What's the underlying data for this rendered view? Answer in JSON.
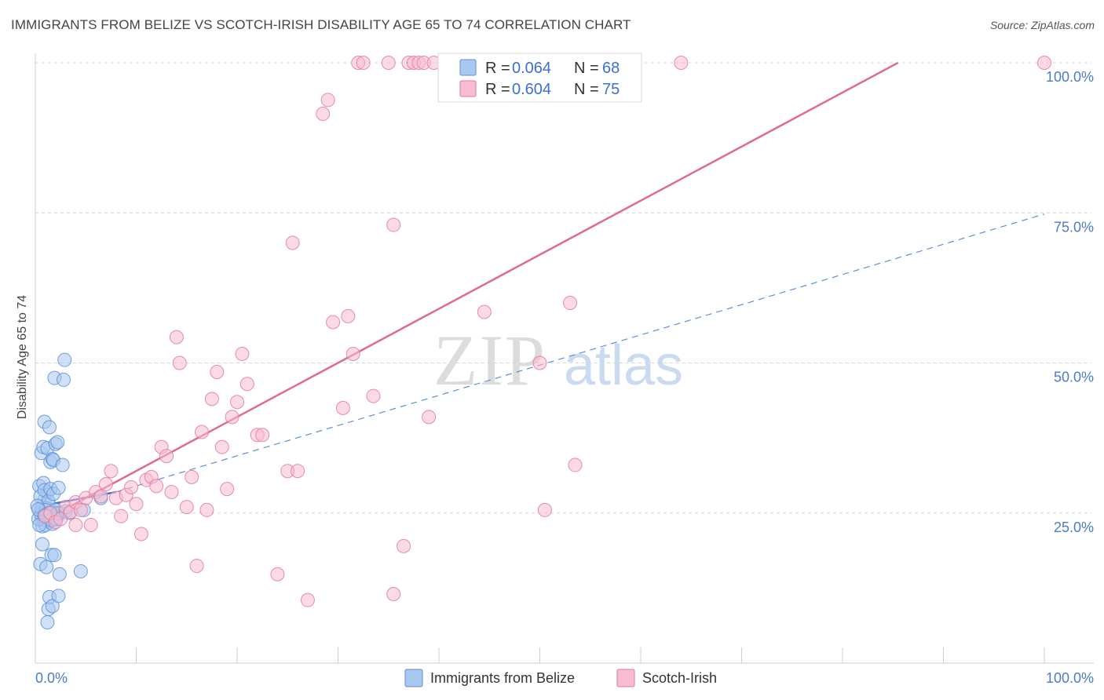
{
  "title": "IMMIGRANTS FROM BELIZE VS SCOTCH-IRISH DISABILITY AGE 65 TO 74 CORRELATION CHART",
  "source": "Source: ZipAtlas.com",
  "watermark": {
    "part1": "ZIP",
    "part2": "atlas"
  },
  "legend_top": {
    "r_label": "R = ",
    "n_label": "N = ",
    "rows": [
      {
        "r": "0.064",
        "n": "68",
        "color": "#a9c8f0",
        "stroke": "#5b8fd6"
      },
      {
        "r": "0.604",
        "n": "75",
        "color": "#f7bcd0",
        "stroke": "#e27a9e"
      }
    ]
  },
  "chart_data": {
    "type": "scatter",
    "xlabel": "",
    "ylabel": "Disability Age 65 to 74",
    "xlim": [
      0,
      100
    ],
    "ylim": [
      0,
      100
    ],
    "x_tick_labels": [
      "0.0%",
      "100.0%"
    ],
    "y_ticks": [
      25,
      50,
      75,
      100
    ],
    "y_tick_labels": [
      "25.0%",
      "50.0%",
      "75.0%",
      "100.0%"
    ],
    "grid": true,
    "legend_placement": "bottom",
    "series": [
      {
        "name": "Immigrants from Belize",
        "color": "#a9c8f0",
        "stroke": "#5b8fd6",
        "trend": {
          "x0": 0,
          "y0": 26.0,
          "x1": 8,
          "y1": 28.5,
          "solid_until": 8,
          "dashed_to": 100,
          "y_end": 74.8
        },
        "points": [
          [
            0.5,
            25.2
          ],
          [
            0.6,
            24.5
          ],
          [
            0.7,
            26.0
          ],
          [
            0.8,
            23.8
          ],
          [
            0.9,
            27.2
          ],
          [
            1.0,
            25.0
          ],
          [
            1.1,
            24.0
          ],
          [
            1.2,
            28.5
          ],
          [
            1.3,
            26.5
          ],
          [
            1.4,
            23.5
          ],
          [
            0.4,
            29.5
          ],
          [
            0.5,
            27.8
          ],
          [
            0.6,
            24.8
          ],
          [
            0.7,
            22.8
          ],
          [
            0.8,
            30.0
          ],
          [
            0.9,
            28.8
          ],
          [
            1.0,
            23.0
          ],
          [
            1.1,
            25.8
          ],
          [
            1.2,
            24.2
          ],
          [
            1.3,
            27.0
          ],
          [
            1.5,
            29.0
          ],
          [
            1.6,
            24.5
          ],
          [
            1.7,
            23.2
          ],
          [
            1.8,
            28.2
          ],
          [
            2.0,
            25.5
          ],
          [
            2.1,
            24.0
          ],
          [
            2.3,
            29.2
          ],
          [
            2.5,
            25.0
          ],
          [
            0.6,
            35.0
          ],
          [
            0.8,
            36.0
          ],
          [
            0.9,
            40.2
          ],
          [
            1.2,
            35.8
          ],
          [
            1.4,
            39.3
          ],
          [
            1.5,
            33.5
          ],
          [
            1.7,
            34.0
          ],
          [
            1.8,
            33.8
          ],
          [
            1.9,
            47.5
          ],
          [
            2.0,
            36.5
          ],
          [
            2.2,
            36.8
          ],
          [
            2.7,
            33.0
          ],
          [
            2.8,
            47.2
          ],
          [
            2.9,
            50.5
          ],
          [
            0.5,
            16.5
          ],
          [
            0.7,
            19.8
          ],
          [
            1.1,
            16.0
          ],
          [
            1.6,
            18.0
          ],
          [
            1.9,
            18.0
          ],
          [
            2.4,
            14.8
          ],
          [
            1.2,
            6.8
          ],
          [
            1.3,
            9.0
          ],
          [
            1.4,
            11.0
          ],
          [
            1.7,
            9.5
          ],
          [
            2.3,
            11.2
          ],
          [
            4.5,
            15.3
          ],
          [
            0.3,
            24.0
          ],
          [
            0.4,
            23.0
          ],
          [
            1.0,
            25.5
          ],
          [
            1.4,
            25.0
          ],
          [
            1.6,
            23.8
          ],
          [
            2.0,
            24.0
          ],
          [
            2.2,
            25.0
          ],
          [
            3.0,
            25.3
          ],
          [
            3.4,
            25.0
          ],
          [
            4.8,
            25.5
          ],
          [
            6.5,
            27.5
          ],
          [
            0.2,
            26.2
          ],
          [
            0.3,
            25.6
          ],
          [
            0.9,
            24.6
          ]
        ]
      },
      {
        "name": "Scotch-Irish",
        "color": "#f7bcd0",
        "stroke": "#e27a9e",
        "trend": {
          "x0": 0,
          "y0": 23.0,
          "x1": 85.5,
          "y1": 100
        },
        "points": [
          [
            1.0,
            24.5
          ],
          [
            1.5,
            25.0
          ],
          [
            2.0,
            23.5
          ],
          [
            2.5,
            24.0
          ],
          [
            3.0,
            26.0
          ],
          [
            3.5,
            25.2
          ],
          [
            4.0,
            26.8
          ],
          [
            4.5,
            25.5
          ],
          [
            5.0,
            27.5
          ],
          [
            5.5,
            23.0
          ],
          [
            6.0,
            28.5
          ],
          [
            6.5,
            27.8
          ],
          [
            7.0,
            29.8
          ],
          [
            7.5,
            32.0
          ],
          [
            8.0,
            27.5
          ],
          [
            8.5,
            24.5
          ],
          [
            9.0,
            28.0
          ],
          [
            9.5,
            29.3
          ],
          [
            10.0,
            26.5
          ],
          [
            10.5,
            21.5
          ],
          [
            11.0,
            30.5
          ],
          [
            11.5,
            31.0
          ],
          [
            12.0,
            29.5
          ],
          [
            12.5,
            36.0
          ],
          [
            13.0,
            34.5
          ],
          [
            13.5,
            28.5
          ],
          [
            14.0,
            54.3
          ],
          [
            14.3,
            50.0
          ],
          [
            15.0,
            26.0
          ],
          [
            15.5,
            31.0
          ],
          [
            16.0,
            16.2
          ],
          [
            16.5,
            38.5
          ],
          [
            17.0,
            25.5
          ],
          [
            17.5,
            44.0
          ],
          [
            18.0,
            48.5
          ],
          [
            18.5,
            36.0
          ],
          [
            19.0,
            29.0
          ],
          [
            19.5,
            41.0
          ],
          [
            20.0,
            43.5
          ],
          [
            20.5,
            51.5
          ],
          [
            21.0,
            46.5
          ],
          [
            22.0,
            38.0
          ],
          [
            22.5,
            38.0
          ],
          [
            24.0,
            14.8
          ],
          [
            25.0,
            32.0
          ],
          [
            25.5,
            70.0
          ],
          [
            26.0,
            32.0
          ],
          [
            27.0,
            10.5
          ],
          [
            28.5,
            91.5
          ],
          [
            29.0,
            93.8
          ],
          [
            29.5,
            56.8
          ],
          [
            30.5,
            42.5
          ],
          [
            31.0,
            57.8
          ],
          [
            31.5,
            51.5
          ],
          [
            32.0,
            100
          ],
          [
            32.5,
            100
          ],
          [
            33.5,
            44.5
          ],
          [
            35.0,
            100
          ],
          [
            35.5,
            73.0
          ],
          [
            37.0,
            100
          ],
          [
            37.5,
            100
          ],
          [
            38.0,
            100
          ],
          [
            38.5,
            100
          ],
          [
            39.0,
            41.0
          ],
          [
            39.5,
            100
          ],
          [
            36.5,
            19.5
          ],
          [
            35.5,
            11.5
          ],
          [
            44.5,
            58.5
          ],
          [
            50.0,
            50.0
          ],
          [
            50.5,
            25.5
          ],
          [
            53.0,
            60.0
          ],
          [
            53.5,
            33.0
          ],
          [
            64.0,
            100
          ],
          [
            100,
            100
          ],
          [
            4.0,
            23.0
          ]
        ]
      }
    ]
  }
}
